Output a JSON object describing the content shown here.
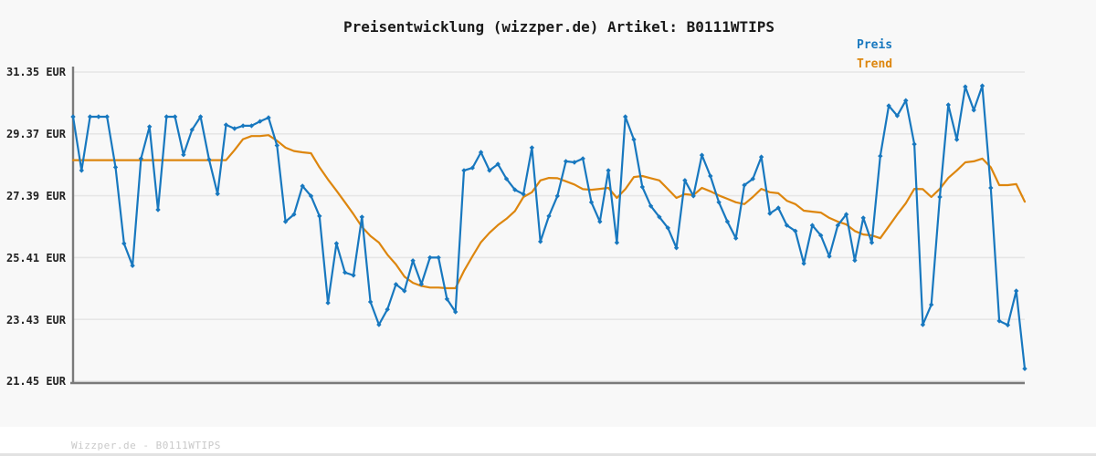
{
  "title": "Preisentwicklung (wizzper.de) Artikel: B0111WTIPS",
  "watermark": "Wizzper.de - B0111WTIPS",
  "legend": {
    "items": [
      {
        "label": "Preis",
        "color": "#1878bf"
      },
      {
        "label": "Trend",
        "color": "#dd860e"
      }
    ]
  },
  "colors": {
    "price_line": "#1878bf",
    "trend_line": "#dd860e",
    "background": "#f8f8f8",
    "gridline": "#e6e6e6",
    "axis_spine": "#7a7a7a"
  },
  "chart_data": {
    "type": "line",
    "title": "Preisentwicklung (wizzper.de) Artikel: B0111WTIPS",
    "ylabel": "",
    "xlabel": "",
    "y_unit": "EUR",
    "ylim": [
      21.45,
      31.35
    ],
    "y_tick_labels": [
      "31.35 EUR",
      "29.37 EUR",
      "27.39 EUR",
      "25.41 EUR",
      "23.43 EUR",
      "21.45 EUR"
    ],
    "y_tick_values": [
      31.35,
      29.37,
      27.39,
      25.41,
      23.43,
      21.45
    ],
    "x_tick_labels": [],
    "grid": "horizontal",
    "legend_position": "top-right",
    "series": [
      {
        "name": "Preis",
        "color": "#1878bf",
        "marker": "diamond",
        "values": [
          29.92,
          28.2,
          29.92,
          29.92,
          29.92,
          28.3,
          25.86,
          25.15,
          28.58,
          29.6,
          26.94,
          29.92,
          29.92,
          28.7,
          29.5,
          29.92,
          28.55,
          27.45,
          29.66,
          29.54,
          29.63,
          29.63,
          29.77,
          29.89,
          29.0,
          26.56,
          26.79,
          27.7,
          27.38,
          26.74,
          23.96,
          25.86,
          24.93,
          24.84,
          26.71,
          23.99,
          23.26,
          23.75,
          24.55,
          24.34,
          25.31,
          24.56,
          25.41,
          25.41,
          24.08,
          23.67,
          28.2,
          28.28,
          28.78,
          28.2,
          28.4,
          27.93,
          27.58,
          27.44,
          28.93,
          25.92,
          26.74,
          27.38,
          28.49,
          28.46,
          28.58,
          27.18,
          26.56,
          28.2,
          25.89,
          29.92,
          29.19,
          27.67,
          27.06,
          26.71,
          26.36,
          25.72,
          27.88,
          27.38,
          28.69,
          28.02,
          27.18,
          26.56,
          26.03,
          27.73,
          27.93,
          28.63,
          26.82,
          27.0,
          26.44,
          26.26,
          25.22,
          26.44,
          26.12,
          25.45,
          26.44,
          26.79,
          25.32,
          26.68,
          25.89,
          28.66,
          30.27,
          29.95,
          30.44,
          29.04,
          23.26,
          23.9,
          27.35,
          30.3,
          29.19,
          30.88,
          30.13,
          30.91,
          27.64,
          23.38,
          23.25,
          24.34,
          21.85
        ]
      },
      {
        "name": "Trend",
        "color": "#dd860e",
        "marker": "none",
        "values": [
          28.53,
          28.53,
          28.53,
          28.53,
          28.53,
          28.53,
          28.53,
          28.53,
          28.53,
          28.53,
          28.53,
          28.53,
          28.53,
          28.53,
          28.53,
          28.53,
          28.53,
          28.53,
          28.53,
          28.85,
          29.2,
          29.3,
          29.3,
          29.33,
          29.15,
          28.93,
          28.82,
          28.78,
          28.75,
          28.3,
          27.91,
          27.55,
          27.18,
          26.8,
          26.39,
          26.1,
          25.89,
          25.5,
          25.19,
          24.8,
          24.6,
          24.5,
          24.45,
          24.45,
          24.43,
          24.43,
          24.98,
          25.45,
          25.9,
          26.2,
          26.45,
          26.65,
          26.9,
          27.35,
          27.5,
          27.88,
          27.96,
          27.95,
          27.85,
          27.75,
          27.6,
          27.58,
          27.61,
          27.64,
          27.32,
          27.6,
          27.99,
          28.02,
          27.95,
          27.88,
          27.6,
          27.32,
          27.44,
          27.41,
          27.64,
          27.53,
          27.4,
          27.29,
          27.18,
          27.12,
          27.35,
          27.61,
          27.5,
          27.47,
          27.23,
          27.12,
          26.91,
          26.88,
          26.85,
          26.68,
          26.56,
          26.47,
          26.26,
          26.15,
          26.12,
          26.03,
          26.41,
          26.79,
          27.15,
          27.61,
          27.6,
          27.35,
          27.61,
          27.96,
          28.2,
          28.46,
          28.49,
          28.58,
          28.3,
          27.73,
          27.73,
          27.76,
          27.2
        ]
      }
    ]
  }
}
